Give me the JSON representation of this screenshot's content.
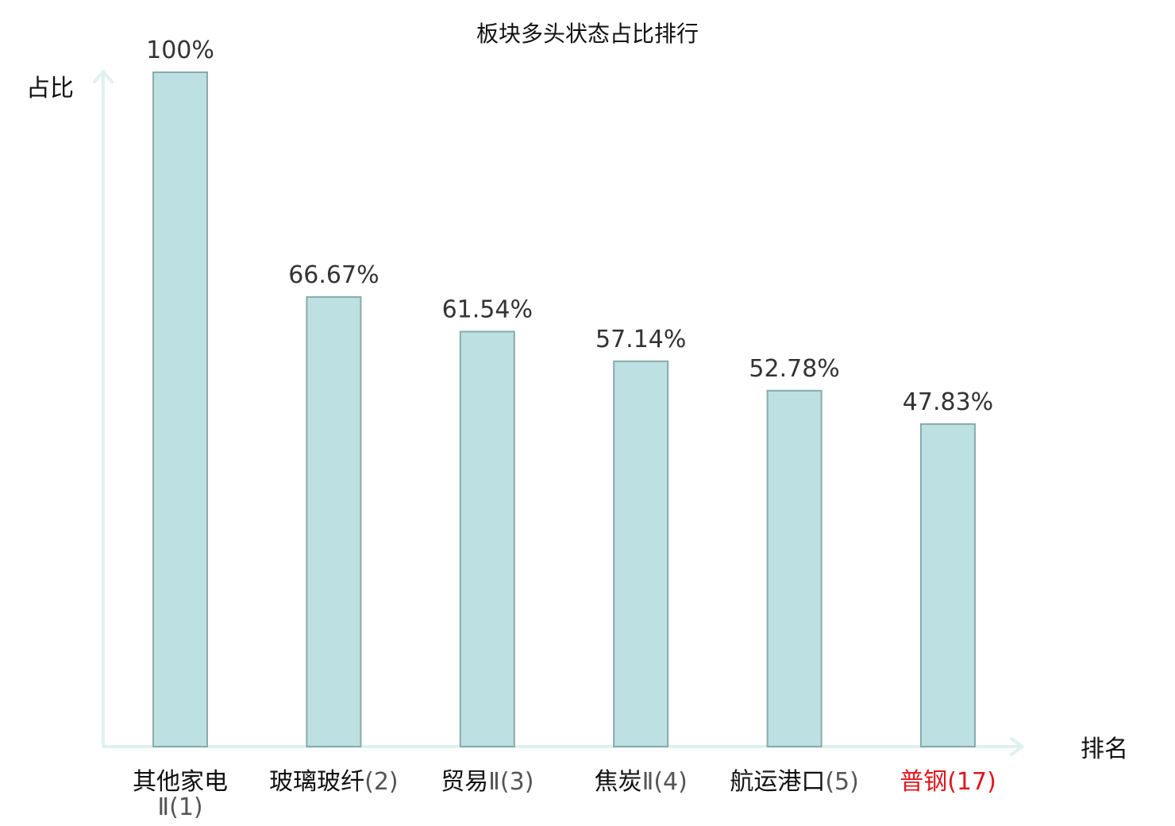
{
  "chart_data": {
    "type": "bar",
    "title": "板块多头状态占比排行",
    "ylabel": "占比",
    "xlabel": "排名",
    "ylim": [
      0,
      100
    ],
    "grid": false,
    "categories": [
      {
        "name": "其他家电",
        "rank_label": "Ⅱ(1)",
        "wrap": true
      },
      {
        "name": "玻璃玻纤",
        "rank_label": "(2)",
        "wrap": false
      },
      {
        "name": "贸易",
        "rank_label": "Ⅱ(3)",
        "wrap": false
      },
      {
        "name": "焦炭",
        "rank_label": "Ⅱ(4)",
        "wrap": false
      },
      {
        "name": "航运港口",
        "rank_label": "(5)",
        "wrap": false
      },
      {
        "name": "普钢",
        "rank_label": "(17)",
        "wrap": false,
        "highlight": true
      }
    ],
    "values": [
      100,
      66.67,
      61.54,
      57.14,
      52.78,
      47.83
    ],
    "value_labels": [
      "100%",
      "66.67%",
      "61.54%",
      "57.14%",
      "52.78%",
      "47.83%"
    ]
  },
  "colors": {
    "bar_fill": "#bde0e2",
    "bar_stroke": "#8aaaab",
    "axis": "#dff1ef",
    "highlight": "#e0161e"
  }
}
